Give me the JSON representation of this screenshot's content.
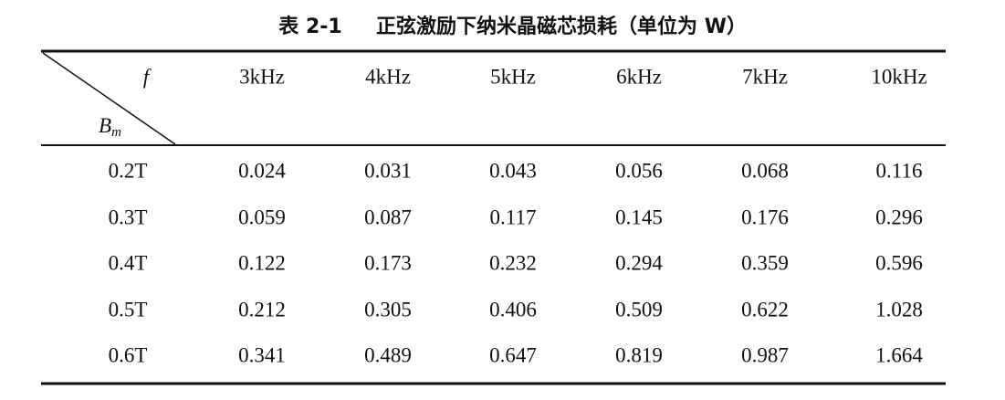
{
  "caption": {
    "label": "表 2-1",
    "title": "正弦激励下纳米晶磁芯损耗（单位为 W）"
  },
  "table": {
    "corner": {
      "top": "f",
      "bottom": "B",
      "bottom_sub": "m"
    },
    "headers": [
      "3kHz",
      "4kHz",
      "5kHz",
      "6kHz",
      "7kHz",
      "10kHz"
    ],
    "rows": [
      [
        "0.2T",
        "0.024",
        "0.031",
        "0.043",
        "0.056",
        "0.068",
        "0.116"
      ],
      [
        "0.3T",
        "0.059",
        "0.087",
        "0.117",
        "0.145",
        "0.176",
        "0.296"
      ],
      [
        "0.4T",
        "0.122",
        "0.173",
        "0.232",
        "0.294",
        "0.359",
        "0.596"
      ],
      [
        "0.5T",
        "0.212",
        "0.305",
        "0.406",
        "0.509",
        "0.622",
        "1.028"
      ],
      [
        "0.6T",
        "0.341",
        "0.489",
        "0.647",
        "0.819",
        "0.987",
        "1.664"
      ]
    ]
  }
}
